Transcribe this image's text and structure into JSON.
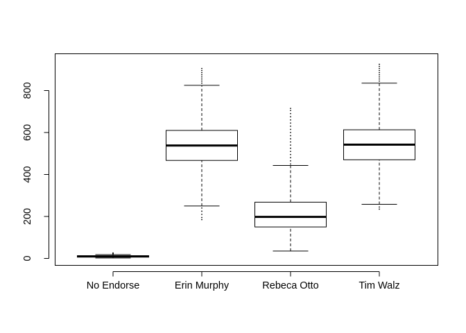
{
  "chart_data": {
    "type": "boxplot",
    "title": "",
    "xlabel": "",
    "ylabel": "",
    "ylim": [
      -30,
      950
    ],
    "y_ticks": [
      0,
      200,
      400,
      600,
      800
    ],
    "categories": [
      "No Endorse",
      "Erin Murphy",
      "Rebeca Otto",
      "Tim Walz"
    ],
    "boxes": [
      {
        "name": "No Endorse",
        "q1": 6,
        "median": 10,
        "q3": 13,
        "whisker_low": 2,
        "whisker_high": 18,
        "outliers": [
          21,
          24,
          26
        ]
      },
      {
        "name": "Erin Murphy",
        "q1": 467,
        "median": 538,
        "q3": 610,
        "whisker_low": 250,
        "whisker_high": 825,
        "outliers": [
          185,
          195,
          210,
          225,
          240,
          835,
          845,
          855,
          865,
          875,
          885,
          895,
          905
        ]
      },
      {
        "name": "Rebeca Otto",
        "q1": 150,
        "median": 198,
        "q3": 268,
        "whisker_low": 35,
        "whisker_high": 443,
        "outliers": [
          450,
          465,
          480,
          495,
          510,
          525,
          540,
          555,
          570,
          585,
          600,
          615,
          630,
          645,
          660,
          675,
          690,
          705,
          715
        ]
      },
      {
        "name": "Tim Walz",
        "q1": 470,
        "median": 542,
        "q3": 613,
        "whisker_low": 258,
        "whisker_high": 835,
        "outliers": [
          235,
          245,
          845,
          855,
          865,
          875,
          885,
          895,
          905,
          915,
          925
        ]
      }
    ],
    "grid": false,
    "legend": "none"
  }
}
